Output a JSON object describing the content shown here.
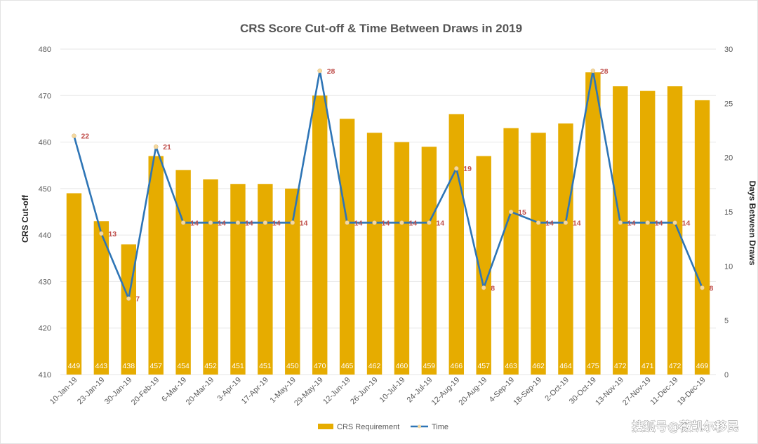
{
  "chart_data": {
    "type": "bar",
    "title": "CRS Score Cut-off & Time Between Draws in 2019",
    "ylabel": "CRS Cut-off",
    "y2label": "Days Between Draws",
    "ylim": [
      410,
      480
    ],
    "y_ticks": [
      410,
      420,
      430,
      440,
      450,
      460,
      470,
      480
    ],
    "y2lim": [
      0,
      30
    ],
    "y2_ticks": [
      0,
      5,
      10,
      15,
      20,
      25,
      30
    ],
    "grid": true,
    "legend_position": "bottom",
    "categories": [
      "10-Jan-19",
      "23-Jan-19",
      "30-Jan-19",
      "20-Feb-19",
      "6-Mar-19",
      "20-Mar-19",
      "3-Apr-19",
      "17-Apr-19",
      "1-May-19",
      "29-May-19",
      "12-Jun-19",
      "26-Jun-19",
      "10-Jul-19",
      "24-Jul-19",
      "12-Aug-19",
      "20-Aug-19",
      "4-Sep-19",
      "18-Sep-19",
      "2-Oct-19",
      "30-Oct-19",
      "13-Nov-19",
      "27-Nov-19",
      "11-Dec-19",
      "19-Dec-19"
    ],
    "series": [
      {
        "name": "CRS Requirement",
        "type": "bar",
        "axis": "left",
        "color": "#e6ac00",
        "values": [
          449,
          443,
          438,
          457,
          454,
          452,
          451,
          451,
          450,
          470,
          465,
          462,
          460,
          459,
          466,
          457,
          463,
          462,
          464,
          475,
          472,
          471,
          472,
          469
        ]
      },
      {
        "name": "Time",
        "type": "line",
        "axis": "right",
        "color": "#2e75b6",
        "marker_color": "#f5d9a0",
        "label_color": "#c0504d",
        "values": [
          22,
          13,
          7,
          21,
          14,
          14,
          14,
          14,
          14,
          28,
          14,
          14,
          14,
          14,
          19,
          8,
          15,
          14,
          14,
          28,
          14,
          14,
          14,
          8
        ]
      }
    ]
  },
  "watermark": "搜狐号@薇凯尔移民"
}
